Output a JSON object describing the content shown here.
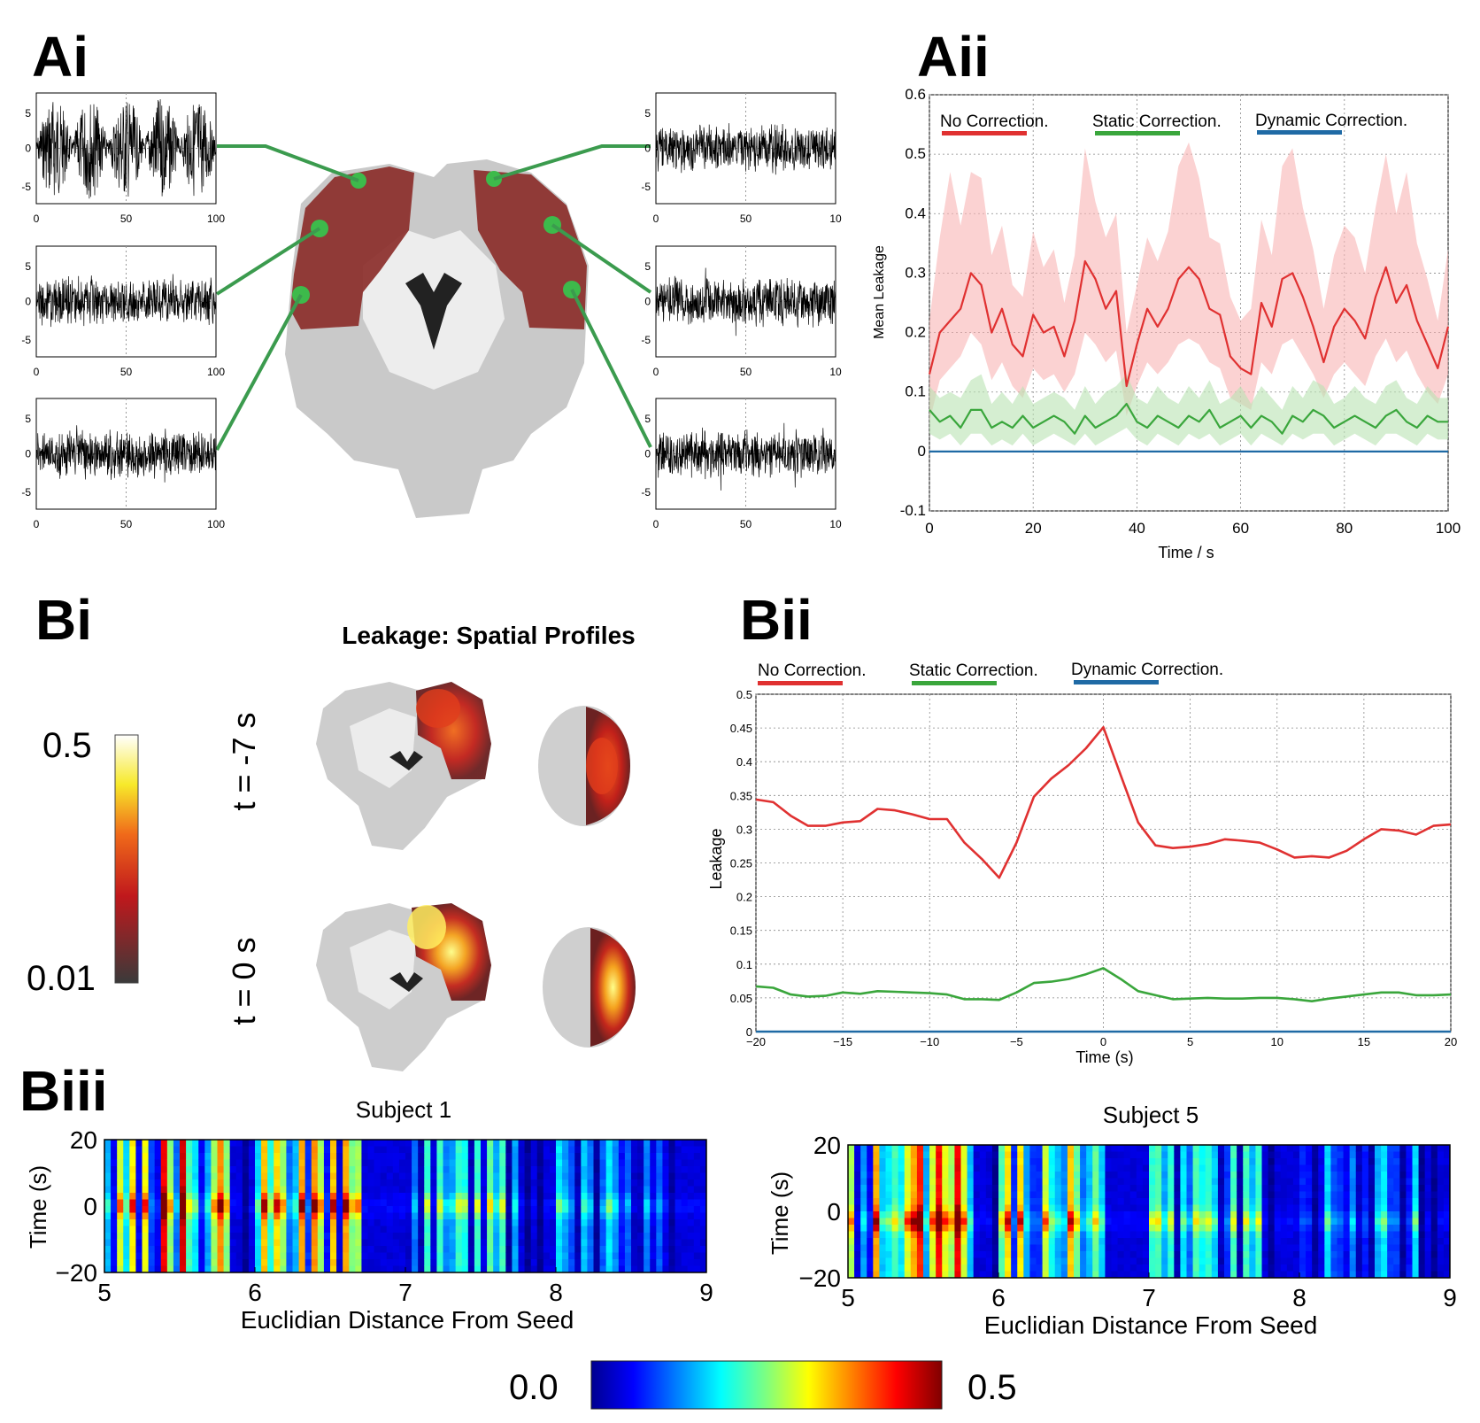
{
  "panels": {
    "ai": "Ai",
    "aii": "Aii",
    "bi": "Bi",
    "bii": "Bii",
    "biii": "Biii"
  },
  "ai": {
    "y_ticks": [
      "5",
      "0",
      "-5"
    ],
    "x_ticks_left": [
      "0",
      "50",
      "100"
    ],
    "x_ticks_right": [
      "0",
      "50",
      "10"
    ],
    "traces": [
      "oscillatory",
      "noise",
      "noise",
      "noise",
      "noise",
      "noise"
    ],
    "brain_colors": {
      "atlas": "#8b2e2a",
      "seed": "#3dba4b",
      "connector": "#3b9b4e"
    }
  },
  "colors": {
    "no_correction": "#e03131",
    "static_correction": "#3aa63c",
    "dynamic_correction": "#1f6aa5"
  },
  "chart_data": [
    {
      "id": "aii",
      "type": "line",
      "xlabel": "Time / s",
      "ylabel": "Mean Leakage",
      "xlim": [
        0,
        100
      ],
      "ylim": [
        -0.1,
        0.6
      ],
      "x_ticks": [
        0,
        20,
        40,
        60,
        80,
        100
      ],
      "y_ticks": [
        -0.1,
        0,
        0.1,
        0.2,
        0.3,
        0.4,
        0.5,
        0.6
      ],
      "y_tick_labels": [
        "-0.1",
        "0",
        "0.1",
        "0.2",
        "0.3",
        "0.4",
        "0.5",
        "0.6"
      ],
      "grid": true,
      "legend": "top",
      "series": [
        {
          "name": "No Correction.",
          "x": [
            0,
            2,
            4,
            6,
            8,
            10,
            12,
            14,
            16,
            18,
            20,
            22,
            24,
            26,
            28,
            30,
            32,
            34,
            36,
            38,
            40,
            42,
            44,
            46,
            48,
            50,
            52,
            54,
            56,
            58,
            60,
            62,
            64,
            66,
            68,
            70,
            72,
            74,
            76,
            78,
            80,
            82,
            84,
            86,
            88,
            90,
            92,
            94,
            96,
            98,
            100
          ],
          "values": [
            0.13,
            0.2,
            0.22,
            0.24,
            0.3,
            0.28,
            0.2,
            0.24,
            0.18,
            0.16,
            0.23,
            0.2,
            0.21,
            0.16,
            0.22,
            0.32,
            0.29,
            0.24,
            0.27,
            0.11,
            0.18,
            0.24,
            0.21,
            0.24,
            0.29,
            0.31,
            0.29,
            0.24,
            0.23,
            0.16,
            0.14,
            0.13,
            0.25,
            0.21,
            0.29,
            0.3,
            0.26,
            0.21,
            0.15,
            0.21,
            0.24,
            0.22,
            0.19,
            0.26,
            0.31,
            0.25,
            0.28,
            0.22,
            0.18,
            0.14,
            0.21
          ],
          "band_lower": [
            0.05,
            0.12,
            0.14,
            0.16,
            0.2,
            0.18,
            0.12,
            0.15,
            0.11,
            0.09,
            0.14,
            0.12,
            0.13,
            0.1,
            0.13,
            0.2,
            0.18,
            0.15,
            0.17,
            0.06,
            0.11,
            0.15,
            0.13,
            0.15,
            0.18,
            0.19,
            0.18,
            0.15,
            0.14,
            0.09,
            0.08,
            0.07,
            0.15,
            0.13,
            0.18,
            0.19,
            0.16,
            0.13,
            0.09,
            0.13,
            0.15,
            0.13,
            0.11,
            0.16,
            0.19,
            0.15,
            0.17,
            0.13,
            0.1,
            0.08,
            0.13
          ],
          "band_upper": [
            0.22,
            0.36,
            0.47,
            0.38,
            0.47,
            0.46,
            0.33,
            0.38,
            0.28,
            0.26,
            0.37,
            0.31,
            0.34,
            0.25,
            0.33,
            0.51,
            0.42,
            0.36,
            0.4,
            0.2,
            0.28,
            0.36,
            0.32,
            0.37,
            0.48,
            0.52,
            0.46,
            0.36,
            0.35,
            0.26,
            0.22,
            0.24,
            0.39,
            0.33,
            0.48,
            0.51,
            0.41,
            0.34,
            0.24,
            0.33,
            0.38,
            0.36,
            0.3,
            0.41,
            0.5,
            0.4,
            0.47,
            0.35,
            0.29,
            0.22,
            0.34
          ]
        },
        {
          "name": "Static Correction.",
          "x": [
            0,
            2,
            4,
            6,
            8,
            10,
            12,
            14,
            16,
            18,
            20,
            22,
            24,
            26,
            28,
            30,
            32,
            34,
            36,
            38,
            40,
            42,
            44,
            46,
            48,
            50,
            52,
            54,
            56,
            58,
            60,
            62,
            64,
            66,
            68,
            70,
            72,
            74,
            76,
            78,
            80,
            82,
            84,
            86,
            88,
            90,
            92,
            94,
            96,
            98,
            100
          ],
          "values": [
            0.07,
            0.05,
            0.06,
            0.04,
            0.07,
            0.07,
            0.04,
            0.05,
            0.04,
            0.06,
            0.04,
            0.05,
            0.06,
            0.05,
            0.03,
            0.06,
            0.04,
            0.05,
            0.06,
            0.08,
            0.05,
            0.04,
            0.06,
            0.05,
            0.04,
            0.06,
            0.05,
            0.07,
            0.04,
            0.05,
            0.06,
            0.04,
            0.06,
            0.05,
            0.03,
            0.06,
            0.05,
            0.07,
            0.06,
            0.04,
            0.05,
            0.06,
            0.05,
            0.04,
            0.06,
            0.07,
            0.05,
            0.04,
            0.06,
            0.05,
            0.05
          ],
          "band_lower": [
            0.03,
            0.02,
            0.03,
            0.01,
            0.03,
            0.03,
            0.01,
            0.02,
            0.01,
            0.03,
            0.01,
            0.02,
            0.03,
            0.02,
            0.01,
            0.03,
            0.01,
            0.02,
            0.03,
            0.04,
            0.02,
            0.01,
            0.03,
            0.02,
            0.01,
            0.03,
            0.02,
            0.03,
            0.01,
            0.02,
            0.03,
            0.01,
            0.03,
            0.02,
            0.01,
            0.03,
            0.02,
            0.03,
            0.03,
            0.01,
            0.02,
            0.03,
            0.02,
            0.01,
            0.03,
            0.03,
            0.02,
            0.01,
            0.03,
            0.02,
            0.02
          ],
          "band_upper": [
            0.11,
            0.09,
            0.1,
            0.09,
            0.12,
            0.13,
            0.08,
            0.1,
            0.08,
            0.11,
            0.08,
            0.09,
            0.1,
            0.09,
            0.07,
            0.11,
            0.08,
            0.1,
            0.11,
            0.13,
            0.09,
            0.08,
            0.11,
            0.09,
            0.08,
            0.11,
            0.09,
            0.12,
            0.08,
            0.09,
            0.11,
            0.08,
            0.11,
            0.09,
            0.07,
            0.11,
            0.09,
            0.12,
            0.11,
            0.08,
            0.09,
            0.11,
            0.09,
            0.08,
            0.11,
            0.12,
            0.09,
            0.08,
            0.11,
            0.09,
            0.09
          ]
        },
        {
          "name": "Dynamic Correction.",
          "x": [
            0,
            100
          ],
          "values": [
            0,
            0
          ]
        }
      ]
    },
    {
      "id": "bii",
      "type": "line",
      "xlabel": "Time (s)",
      "ylabel": "Leakage",
      "xlim": [
        -20,
        20
      ],
      "ylim": [
        0,
        0.5
      ],
      "x_ticks": [
        -20,
        -15,
        -10,
        -5,
        0,
        5,
        10,
        15,
        20
      ],
      "x_tick_labels": [
        "−20",
        "−15",
        "−10",
        "−5",
        "0",
        "5",
        "10",
        "15",
        "20"
      ],
      "y_ticks": [
        0,
        0.05,
        0.1,
        0.15,
        0.2,
        0.25,
        0.3,
        0.35,
        0.4,
        0.45,
        0.5
      ],
      "y_tick_labels": [
        "0",
        "0.05",
        "0.1",
        "0.15",
        "0.2",
        "0.25",
        "0.3",
        "0.35",
        "0.4",
        "0.45",
        "0.5"
      ],
      "grid": true,
      "legend": "top",
      "series": [
        {
          "name": "No Correction.",
          "x": [
            -20,
            -19,
            -18,
            -17,
            -16,
            -15,
            -14,
            -13,
            -12,
            -11,
            -10,
            -9,
            -8,
            -7,
            -6,
            -5,
            -4,
            -3,
            -2,
            -1,
            0,
            1,
            2,
            3,
            4,
            5,
            6,
            7,
            8,
            9,
            10,
            11,
            12,
            13,
            14,
            15,
            16,
            17,
            18,
            19,
            20
          ],
          "values": [
            0.344,
            0.34,
            0.32,
            0.305,
            0.305,
            0.31,
            0.312,
            0.33,
            0.328,
            0.322,
            0.315,
            0.315,
            0.28,
            0.256,
            0.228,
            0.28,
            0.348,
            0.375,
            0.395,
            0.42,
            0.451,
            0.38,
            0.31,
            0.276,
            0.272,
            0.274,
            0.278,
            0.285,
            0.283,
            0.28,
            0.27,
            0.258,
            0.26,
            0.258,
            0.268,
            0.285,
            0.3,
            0.298,
            0.292,
            0.305,
            0.307
          ]
        },
        {
          "name": "Static Correction.",
          "x": [
            -20,
            -19,
            -18,
            -17,
            -16,
            -15,
            -14,
            -13,
            -12,
            -11,
            -10,
            -9,
            -8,
            -7,
            -6,
            -5,
            -4,
            -3,
            -2,
            -1,
            0,
            1,
            2,
            3,
            4,
            5,
            6,
            7,
            8,
            9,
            10,
            11,
            12,
            13,
            14,
            15,
            16,
            17,
            18,
            19,
            20
          ],
          "values": [
            0.067,
            0.065,
            0.055,
            0.052,
            0.053,
            0.058,
            0.056,
            0.06,
            0.059,
            0.058,
            0.057,
            0.055,
            0.048,
            0.048,
            0.047,
            0.058,
            0.072,
            0.074,
            0.078,
            0.085,
            0.094,
            0.078,
            0.06,
            0.054,
            0.048,
            0.049,
            0.05,
            0.049,
            0.049,
            0.05,
            0.05,
            0.048,
            0.045,
            0.049,
            0.052,
            0.055,
            0.058,
            0.058,
            0.054,
            0.054,
            0.055
          ]
        },
        {
          "name": "Dynamic Correction.",
          "x": [
            -20,
            20
          ],
          "values": [
            0,
            0
          ]
        }
      ]
    },
    {
      "id": "biii-1",
      "type": "heatmap",
      "title": "Subject 1",
      "xlabel": "Euclidian Distance From Seed",
      "ylabel": "Time (s)",
      "xlim": [
        5,
        9
      ],
      "ylim": [
        -20,
        20
      ],
      "x_ticks": [
        5,
        6,
        7,
        8,
        9
      ],
      "y_ticks": [
        20,
        0,
        -20
      ],
      "y_tick_labels": [
        "20",
        "0",
        "−20"
      ]
    },
    {
      "id": "biii-5",
      "type": "heatmap",
      "title": "Subject 5",
      "xlabel": "Euclidian Distance From Seed",
      "ylabel": "Time (s)",
      "xlim": [
        5,
        9
      ],
      "ylim": [
        -20,
        20
      ],
      "x_ticks": [
        5,
        6,
        7,
        8,
        9
      ],
      "y_ticks": [
        20,
        0,
        -20
      ],
      "y_tick_labels": [
        "20",
        "0",
        "−20"
      ]
    }
  ],
  "bi": {
    "title": "Leakage: Spatial Profiles",
    "colorbar_max": "0.5",
    "colorbar_min": "0.01",
    "row_labels": [
      "t = -7 s",
      "t = 0 s"
    ]
  },
  "biii_colorbar": {
    "min_label": "0.0",
    "max_label": "0.5"
  }
}
